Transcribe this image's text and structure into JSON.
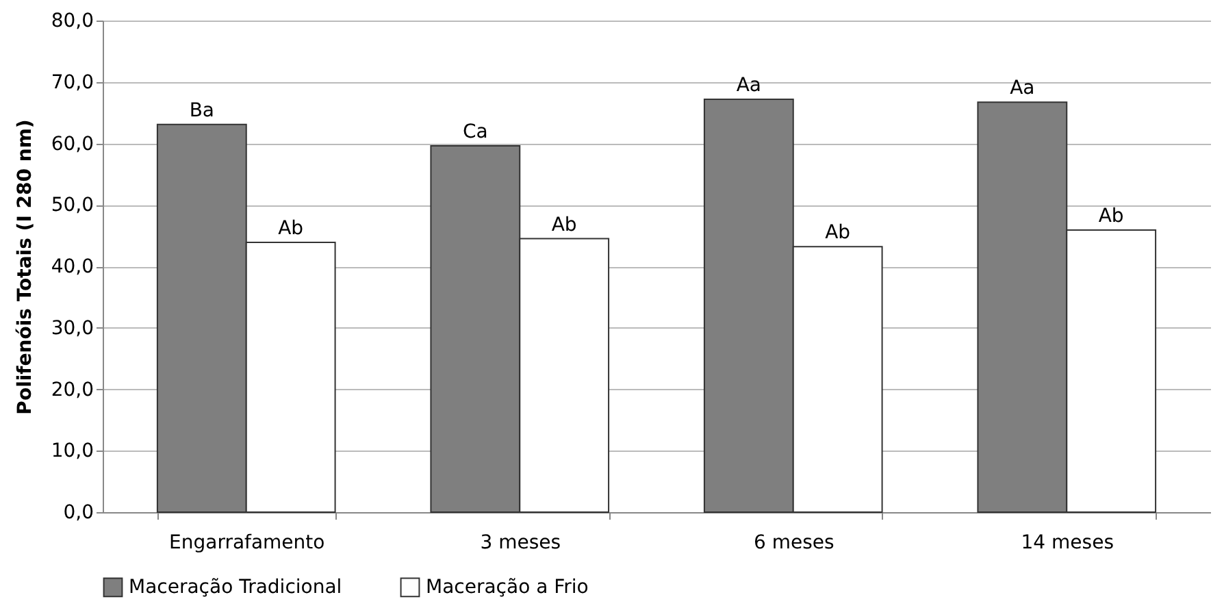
{
  "chart_data": {
    "type": "bar",
    "ylabel": "Polifenóis Totais (I 280 nm)",
    "categories": [
      "Engarrafamento",
      "3 meses",
      "6 meses",
      "14 meses"
    ],
    "series": [
      {
        "name": "Maceração Tradicional",
        "color": "#7f7f7f",
        "values": [
          63.1,
          59.6,
          67.2,
          66.7
        ],
        "value_labels": [
          "Ba",
          "Ca",
          "Aa",
          "Aa"
        ]
      },
      {
        "name": "Maceração a Frio",
        "color": "#ffffff",
        "values": [
          43.9,
          44.5,
          43.2,
          45.9
        ],
        "value_labels": [
          "Ab",
          "Ab",
          "Ab",
          "Ab"
        ]
      }
    ],
    "ylim": [
      0,
      80
    ],
    "yticks": [
      {
        "value": 0,
        "label": "0,0"
      },
      {
        "value": 10,
        "label": "10,0"
      },
      {
        "value": 20,
        "label": "20,0"
      },
      {
        "value": 30,
        "label": "30,0"
      },
      {
        "value": 40,
        "label": "40,0"
      },
      {
        "value": 50,
        "label": "50,0"
      },
      {
        "value": 60,
        "label": "60,0"
      },
      {
        "value": 70,
        "label": "70,0"
      },
      {
        "value": 80,
        "label": "80,0"
      }
    ],
    "grid": "y",
    "legend": "bottom"
  }
}
